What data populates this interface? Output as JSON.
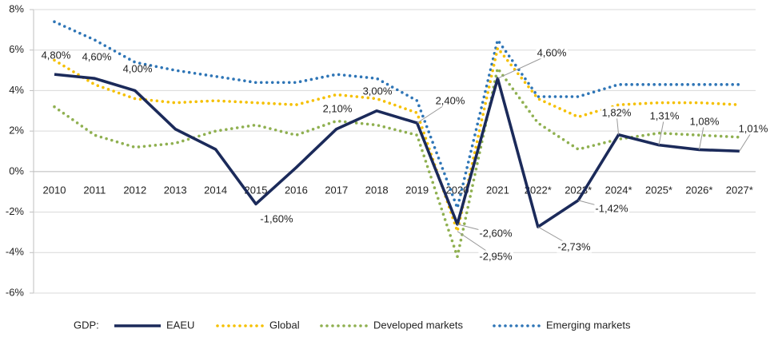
{
  "chart_data": {
    "type": "line",
    "categories": [
      "2010",
      "2011",
      "2012",
      "2013",
      "2014",
      "2015",
      "2016",
      "2017",
      "2018",
      "2019",
      "2020",
      "2021",
      "2022*",
      "2023*",
      "2024*",
      "2025*",
      "2026*",
      "2027*"
    ],
    "ylim": [
      -6,
      8
    ],
    "yticks": [
      {
        "value": -6,
        "label": "-6%"
      },
      {
        "value": -4,
        "label": "-4%"
      },
      {
        "value": -2,
        "label": "-2%"
      },
      {
        "value": 0,
        "label": "0%"
      },
      {
        "value": 2,
        "label": "2%"
      },
      {
        "value": 4,
        "label": "4%"
      },
      {
        "value": 6,
        "label": "6%"
      },
      {
        "value": 8,
        "label": "8%"
      }
    ],
    "grid": true,
    "legend_title": "GDP:",
    "legend": "bottom",
    "series": [
      {
        "name": "EAEU",
        "color": "#1b2a5a",
        "style": "solid",
        "values": [
          4.8,
          4.6,
          4.0,
          2.1,
          1.1,
          -1.6,
          0.2,
          2.1,
          3.0,
          2.4,
          -2.6,
          4.6,
          -2.73,
          -1.42,
          1.82,
          1.31,
          1.08,
          1.01
        ],
        "value_labels": [
          "4,80%",
          "4,60%",
          "4,00%",
          null,
          null,
          "-1,60%",
          null,
          "2,10%",
          "3,00%",
          "2,40%",
          "-2,60%",
          "4,60%",
          "-2,73%",
          "-1,42%",
          "1,82%",
          "1,31%",
          "1,08%",
          "1,01%"
        ]
      },
      {
        "name": "Global",
        "color": "#f5c000",
        "style": "dotted",
        "values": [
          5.5,
          4.3,
          3.6,
          3.4,
          3.5,
          3.4,
          3.3,
          3.8,
          3.6,
          2.9,
          -2.95,
          6.1,
          3.6,
          2.7,
          3.3,
          3.4,
          3.4,
          3.3
        ],
        "value_labels": [
          null,
          null,
          null,
          null,
          null,
          null,
          null,
          null,
          null,
          null,
          "-2,95%",
          null,
          null,
          null,
          null,
          null,
          null,
          null
        ]
      },
      {
        "name": "Developed markets",
        "color": "#8fb050",
        "style": "dotted",
        "values": [
          3.2,
          1.8,
          1.2,
          1.4,
          2.0,
          2.3,
          1.8,
          2.5,
          2.3,
          1.8,
          -4.2,
          5.1,
          2.4,
          1.1,
          1.6,
          1.9,
          1.8,
          1.7
        ]
      },
      {
        "name": "Emerging markets",
        "color": "#2e75b6",
        "style": "dotted",
        "values": [
          7.4,
          6.5,
          5.4,
          5.0,
          4.7,
          4.4,
          4.4,
          4.8,
          4.6,
          3.5,
          -1.8,
          6.5,
          3.7,
          3.7,
          4.3,
          4.3,
          4.3,
          4.3
        ]
      }
    ]
  }
}
